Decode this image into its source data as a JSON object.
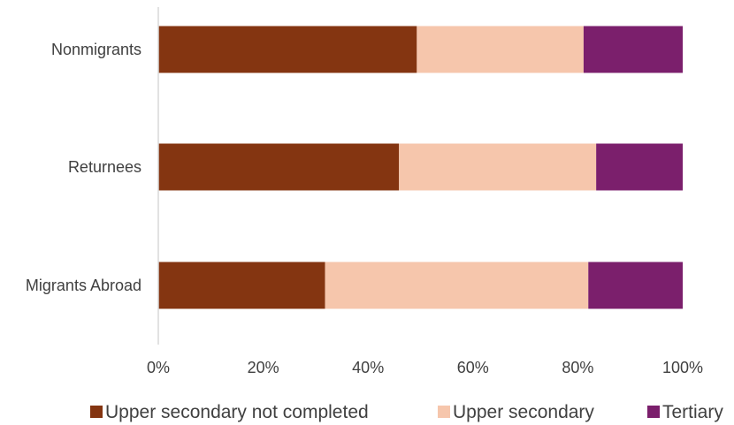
{
  "chart_data": {
    "type": "bar",
    "orientation": "horizontal",
    "stacked": true,
    "categories": [
      "Nonmigrants",
      "Returnees",
      "Migrants Abroad"
    ],
    "series": [
      {
        "name": "Upper secondary not completed",
        "color": "#843511",
        "values": [
          49.3,
          45.9,
          31.8
        ]
      },
      {
        "name": "Upper secondary",
        "color": "#F6C6AC",
        "values": [
          31.8,
          37.6,
          50.2
        ]
      },
      {
        "name": "Tertiary",
        "color": "#7B1F6C",
        "values": [
          18.9,
          16.5,
          18.0
        ]
      }
    ],
    "xlim": [
      0,
      100
    ],
    "x_ticks": [
      "0%",
      "20%",
      "40%",
      "60%",
      "80%",
      "100%"
    ],
    "grid": false,
    "legend_position": "bottom"
  }
}
